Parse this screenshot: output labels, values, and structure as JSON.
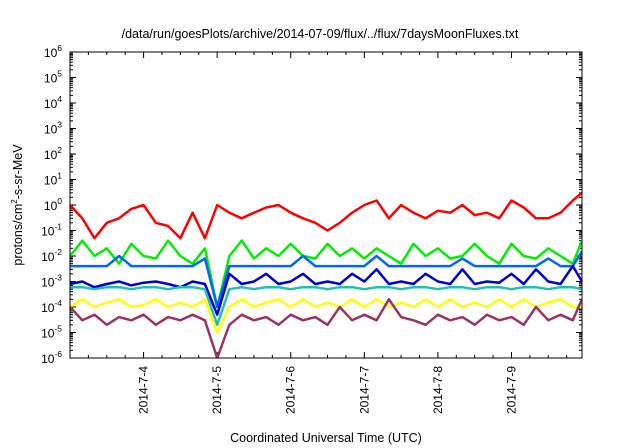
{
  "chart_data": {
    "type": "line",
    "title": "/data/run/goesPlots/archive/2014-07-09/flux/../flux/7daysMoonFluxes.txt",
    "xlabel": "Coordinated Universal Time (UTC)",
    "ylabel": "protons/cm²-s-sr-MeV",
    "ylabel_parts": [
      "protons/cm",
      "2",
      "-s-sr-MeV"
    ],
    "yscale": "log",
    "ylim": [
      1e-06,
      1000000.0
    ],
    "xlim": [
      "2014-07-03",
      "2014-07-09 23:00"
    ],
    "y_ticks": [
      {
        "exp": -6,
        "label": "10",
        "sup": "-6"
      },
      {
        "exp": -5,
        "label": "10",
        "sup": "-5"
      },
      {
        "exp": -4,
        "label": "10",
        "sup": "-4"
      },
      {
        "exp": -3,
        "label": "10",
        "sup": "-3"
      },
      {
        "exp": -2,
        "label": "10",
        "sup": "-2"
      },
      {
        "exp": -1,
        "label": "10",
        "sup": "-1"
      },
      {
        "exp": 0,
        "label": "10",
        "sup": "0"
      },
      {
        "exp": 1,
        "label": "10",
        "sup": "1"
      },
      {
        "exp": 2,
        "label": "10",
        "sup": "2"
      },
      {
        "exp": 3,
        "label": "10",
        "sup": "3"
      },
      {
        "exp": 4,
        "label": "10",
        "sup": "4"
      },
      {
        "exp": 5,
        "label": "10",
        "sup": "5"
      },
      {
        "exp": 6,
        "label": "10",
        "sup": "6"
      }
    ],
    "x_ticks": [
      {
        "x": "2014-07-04",
        "label": "2014-7-4"
      },
      {
        "x": "2014-07-05",
        "label": "2014-7-5"
      },
      {
        "x": "2014-07-06",
        "label": "2014-7-6"
      },
      {
        "x": "2014-07-07",
        "label": "2014-7-7"
      },
      {
        "x": "2014-07-08",
        "label": "2014-7-8"
      },
      {
        "x": "2014-07-09",
        "label": "2014-7-9"
      }
    ],
    "grid": false,
    "legend": "none",
    "series": [
      {
        "color": "#ff0000",
        "x": [
          "2014-07-03",
          "2014-07-03 04:00",
          "2014-07-03 08:00",
          "2014-07-03 12:00",
          "2014-07-03 16:00",
          "2014-07-03 20:00",
          "2014-07-04",
          "2014-07-04 04:00",
          "2014-07-04 08:00",
          "2014-07-04 12:00",
          "2014-07-04 16:00",
          "2014-07-04 20:00",
          "2014-07-05",
          "2014-07-05 04:00",
          "2014-07-05 08:00",
          "2014-07-05 12:00",
          "2014-07-05 16:00",
          "2014-07-05 20:00",
          "2014-07-06",
          "2014-07-06 04:00",
          "2014-07-06 08:00",
          "2014-07-06 12:00",
          "2014-07-06 16:00",
          "2014-07-06 20:00",
          "2014-07-07",
          "2014-07-07 04:00",
          "2014-07-07 08:00",
          "2014-07-07 12:00",
          "2014-07-07 16:00",
          "2014-07-07 20:00",
          "2014-07-08",
          "2014-07-08 04:00",
          "2014-07-08 08:00",
          "2014-07-08 12:00",
          "2014-07-08 16:00",
          "2014-07-08 20:00",
          "2014-07-09",
          "2014-07-09 04:00",
          "2014-07-09 08:00",
          "2014-07-09 12:00",
          "2014-07-09 16:00",
          "2014-07-09 20:00",
          "2014-07-09 23:00"
        ],
        "y": [
          1.0,
          0.3,
          0.05,
          0.2,
          0.3,
          0.7,
          1.0,
          0.2,
          0.15,
          0.05,
          0.5,
          0.05,
          1.0,
          0.5,
          0.3,
          0.5,
          0.8,
          1.0,
          0.5,
          0.3,
          0.2,
          0.1,
          0.2,
          0.5,
          1.0,
          1.5,
          0.3,
          1.0,
          0.5,
          0.3,
          0.6,
          0.5,
          1.0,
          0.4,
          0.5,
          0.3,
          1.5,
          0.8,
          0.3,
          0.3,
          0.5,
          1.5,
          3.0
        ]
      },
      {
        "color": "#00ee00",
        "x": [
          "2014-07-03",
          "2014-07-03 04:00",
          "2014-07-03 08:00",
          "2014-07-03 12:00",
          "2014-07-03 16:00",
          "2014-07-03 20:00",
          "2014-07-04",
          "2014-07-04 04:00",
          "2014-07-04 08:00",
          "2014-07-04 12:00",
          "2014-07-04 16:00",
          "2014-07-04 20:00",
          "2014-07-05",
          "2014-07-05 04:00",
          "2014-07-05 08:00",
          "2014-07-05 12:00",
          "2014-07-05 16:00",
          "2014-07-05 20:00",
          "2014-07-06",
          "2014-07-06 04:00",
          "2014-07-06 08:00",
          "2014-07-06 12:00",
          "2014-07-06 16:00",
          "2014-07-06 20:00",
          "2014-07-07",
          "2014-07-07 04:00",
          "2014-07-07 08:00",
          "2014-07-07 12:00",
          "2014-07-07 16:00",
          "2014-07-07 20:00",
          "2014-07-08",
          "2014-07-08 04:00",
          "2014-07-08 08:00",
          "2014-07-08 12:00",
          "2014-07-08 16:00",
          "2014-07-08 20:00",
          "2014-07-09",
          "2014-07-09 04:00",
          "2014-07-09 08:00",
          "2014-07-09 12:00",
          "2014-07-09 16:00",
          "2014-07-09 20:00",
          "2014-07-09 23:00"
        ],
        "y": [
          0.01,
          0.04,
          0.01,
          0.02,
          0.005,
          0.03,
          0.01,
          0.008,
          0.04,
          0.01,
          0.005,
          0.02,
          0.0001,
          0.01,
          0.04,
          0.008,
          0.02,
          0.01,
          0.03,
          0.01,
          0.008,
          0.03,
          0.01,
          0.02,
          0.008,
          0.02,
          0.01,
          0.005,
          0.03,
          0.01,
          0.02,
          0.008,
          0.01,
          0.03,
          0.01,
          0.005,
          0.03,
          0.01,
          0.008,
          0.02,
          0.01,
          0.005,
          0.04
        ]
      },
      {
        "color": "#0066ff",
        "x": [
          "2014-07-03",
          "2014-07-03 04:00",
          "2014-07-03 08:00",
          "2014-07-03 12:00",
          "2014-07-03 16:00",
          "2014-07-03 20:00",
          "2014-07-04",
          "2014-07-04 04:00",
          "2014-07-04 08:00",
          "2014-07-04 12:00",
          "2014-07-04 16:00",
          "2014-07-04 20:00",
          "2014-07-05",
          "2014-07-05 04:00",
          "2014-07-05 08:00",
          "2014-07-05 12:00",
          "2014-07-05 16:00",
          "2014-07-05 20:00",
          "2014-07-06",
          "2014-07-06 04:00",
          "2014-07-06 08:00",
          "2014-07-06 12:00",
          "2014-07-06 16:00",
          "2014-07-06 20:00",
          "2014-07-07",
          "2014-07-07 04:00",
          "2014-07-07 08:00",
          "2014-07-07 12:00",
          "2014-07-07 16:00",
          "2014-07-07 20:00",
          "2014-07-08",
          "2014-07-08 04:00",
          "2014-07-08 08:00",
          "2014-07-08 12:00",
          "2014-07-08 16:00",
          "2014-07-08 20:00",
          "2014-07-09",
          "2014-07-09 04:00",
          "2014-07-09 08:00",
          "2014-07-09 12:00",
          "2014-07-09 16:00",
          "2014-07-09 20:00",
          "2014-07-09 23:00"
        ],
        "y": [
          0.004,
          0.004,
          0.004,
          0.004,
          0.01,
          0.004,
          0.004,
          0.004,
          0.004,
          0.004,
          0.004,
          0.008,
          0.0001,
          0.004,
          0.004,
          0.004,
          0.004,
          0.004,
          0.004,
          0.01,
          0.004,
          0.004,
          0.004,
          0.004,
          0.004,
          0.01,
          0.004,
          0.004,
          0.004,
          0.004,
          0.004,
          0.004,
          0.008,
          0.004,
          0.004,
          0.004,
          0.004,
          0.004,
          0.004,
          0.008,
          0.004,
          0.004,
          0.015
        ]
      },
      {
        "color": "#0000cc",
        "x": [
          "2014-07-03",
          "2014-07-03 04:00",
          "2014-07-03 08:00",
          "2014-07-03 12:00",
          "2014-07-03 16:00",
          "2014-07-03 20:00",
          "2014-07-04",
          "2014-07-04 04:00",
          "2014-07-04 08:00",
          "2014-07-04 12:00",
          "2014-07-04 16:00",
          "2014-07-04 20:00",
          "2014-07-05",
          "2014-07-05 04:00",
          "2014-07-05 08:00",
          "2014-07-05 12:00",
          "2014-07-05 16:00",
          "2014-07-05 20:00",
          "2014-07-06",
          "2014-07-06 04:00",
          "2014-07-06 08:00",
          "2014-07-06 12:00",
          "2014-07-06 16:00",
          "2014-07-06 20:00",
          "2014-07-07",
          "2014-07-07 04:00",
          "2014-07-07 08:00",
          "2014-07-07 12:00",
          "2014-07-07 16:00",
          "2014-07-07 20:00",
          "2014-07-08",
          "2014-07-08 04:00",
          "2014-07-08 08:00",
          "2014-07-08 12:00",
          "2014-07-08 16:00",
          "2014-07-08 20:00",
          "2014-07-09",
          "2014-07-09 04:00",
          "2014-07-09 08:00",
          "2014-07-09 12:00",
          "2014-07-09 16:00",
          "2014-07-09 20:00",
          "2014-07-09 23:00"
        ],
        "y": [
          0.0008,
          0.001,
          0.0006,
          0.0008,
          0.001,
          0.0007,
          0.0009,
          0.001,
          0.0008,
          0.0006,
          0.001,
          0.0008,
          5e-05,
          0.002,
          0.0008,
          0.001,
          0.002,
          0.0008,
          0.001,
          0.002,
          0.0008,
          0.001,
          0.0008,
          0.002,
          0.001,
          0.003,
          0.0008,
          0.001,
          0.0008,
          0.002,
          0.001,
          0.0008,
          0.003,
          0.0008,
          0.001,
          0.0009,
          0.002,
          0.0008,
          0.003,
          0.001,
          0.0008,
          0.004,
          0.001
        ]
      },
      {
        "color": "#20c0b0",
        "x": [
          "2014-07-03",
          "2014-07-03 04:00",
          "2014-07-03 08:00",
          "2014-07-03 12:00",
          "2014-07-03 16:00",
          "2014-07-03 20:00",
          "2014-07-04",
          "2014-07-04 04:00",
          "2014-07-04 08:00",
          "2014-07-04 12:00",
          "2014-07-04 16:00",
          "2014-07-04 20:00",
          "2014-07-05",
          "2014-07-05 04:00",
          "2014-07-05 08:00",
          "2014-07-05 12:00",
          "2014-07-05 16:00",
          "2014-07-05 20:00",
          "2014-07-06",
          "2014-07-06 04:00",
          "2014-07-06 08:00",
          "2014-07-06 12:00",
          "2014-07-06 16:00",
          "2014-07-06 20:00",
          "2014-07-07",
          "2014-07-07 04:00",
          "2014-07-07 08:00",
          "2014-07-07 12:00",
          "2014-07-07 16:00",
          "2014-07-07 20:00",
          "2014-07-08",
          "2014-07-08 04:00",
          "2014-07-08 08:00",
          "2014-07-08 12:00",
          "2014-07-08 16:00",
          "2014-07-08 20:00",
          "2014-07-09",
          "2014-07-09 04:00",
          "2014-07-09 08:00",
          "2014-07-09 12:00",
          "2014-07-09 16:00",
          "2014-07-09 20:00",
          "2014-07-09 23:00"
        ],
        "y": [
          0.0006,
          0.0006,
          0.0005,
          0.0006,
          0.0006,
          0.0005,
          0.0006,
          0.0006,
          0.0005,
          0.0006,
          0.0006,
          0.0005,
          2e-05,
          0.0005,
          0.0006,
          0.0005,
          0.0006,
          0.0006,
          0.0005,
          0.0006,
          0.0006,
          0.0005,
          0.0006,
          0.0006,
          0.0005,
          0.0006,
          0.0006,
          0.0005,
          0.0006,
          0.0006,
          0.0005,
          0.0006,
          0.0006,
          0.0005,
          0.0006,
          0.0006,
          0.0005,
          0.0006,
          0.0006,
          0.0005,
          0.0006,
          0.0006,
          0.0005
        ]
      },
      {
        "color": "#ffff00",
        "x": [
          "2014-07-03",
          "2014-07-03 04:00",
          "2014-07-03 08:00",
          "2014-07-03 12:00",
          "2014-07-03 16:00",
          "2014-07-03 20:00",
          "2014-07-04",
          "2014-07-04 04:00",
          "2014-07-04 08:00",
          "2014-07-04 12:00",
          "2014-07-04 16:00",
          "2014-07-04 20:00",
          "2014-07-05",
          "2014-07-05 04:00",
          "2014-07-05 08:00",
          "2014-07-05 12:00",
          "2014-07-05 16:00",
          "2014-07-05 20:00",
          "2014-07-06",
          "2014-07-06 04:00",
          "2014-07-06 08:00",
          "2014-07-06 12:00",
          "2014-07-06 16:00",
          "2014-07-06 20:00",
          "2014-07-07",
          "2014-07-07 04:00",
          "2014-07-07 08:00",
          "2014-07-07 12:00",
          "2014-07-07 16:00",
          "2014-07-07 20:00",
          "2014-07-08",
          "2014-07-08 04:00",
          "2014-07-08 08:00",
          "2014-07-08 12:00",
          "2014-07-08 16:00",
          "2014-07-08 20:00",
          "2014-07-09",
          "2014-07-09 04:00",
          "2014-07-09 08:00",
          "2014-07-09 12:00",
          "2014-07-09 16:00",
          "2014-07-09 20:00",
          "2014-07-09 23:00"
        ],
        "y": [
          0.0001,
          0.0002,
          0.0001,
          0.00015,
          0.0002,
          0.0001,
          0.00012,
          0.0002,
          0.0001,
          0.00015,
          0.0001,
          0.0002,
          1e-05,
          0.0001,
          0.0002,
          0.0001,
          0.00015,
          0.0002,
          0.0001,
          0.0002,
          0.0001,
          0.00015,
          0.0001,
          0.0002,
          0.0001,
          0.0002,
          0.0001,
          0.00015,
          0.0001,
          0.0002,
          0.0001,
          0.0002,
          0.0001,
          0.00015,
          0.0001,
          0.0002,
          0.0001,
          0.0002,
          0.0001,
          0.00015,
          0.0002,
          0.0001,
          0.0001
        ]
      },
      {
        "color": "#993366",
        "x": [
          "2014-07-03",
          "2014-07-03 04:00",
          "2014-07-03 08:00",
          "2014-07-03 12:00",
          "2014-07-03 16:00",
          "2014-07-03 20:00",
          "2014-07-04",
          "2014-07-04 04:00",
          "2014-07-04 08:00",
          "2014-07-04 12:00",
          "2014-07-04 16:00",
          "2014-07-04 20:00",
          "2014-07-05",
          "2014-07-05 04:00",
          "2014-07-05 08:00",
          "2014-07-05 12:00",
          "2014-07-05 16:00",
          "2014-07-05 20:00",
          "2014-07-06",
          "2014-07-06 04:00",
          "2014-07-06 08:00",
          "2014-07-06 12:00",
          "2014-07-06 16:00",
          "2014-07-06 20:00",
          "2014-07-07",
          "2014-07-07 04:00",
          "2014-07-07 08:00",
          "2014-07-07 12:00",
          "2014-07-07 16:00",
          "2014-07-07 20:00",
          "2014-07-08",
          "2014-07-08 04:00",
          "2014-07-08 08:00",
          "2014-07-08 12:00",
          "2014-07-08 16:00",
          "2014-07-08 20:00",
          "2014-07-09",
          "2014-07-09 04:00",
          "2014-07-09 08:00",
          "2014-07-09 12:00",
          "2014-07-09 16:00",
          "2014-07-09 20:00",
          "2014-07-09 23:00"
        ],
        "y": [
          0.0001,
          3e-05,
          5e-05,
          2e-05,
          4e-05,
          3e-05,
          5e-05,
          2e-05,
          4e-05,
          3e-05,
          5e-05,
          3e-05,
          1e-06,
          2e-05,
          5e-05,
          3e-05,
          4e-05,
          2e-05,
          5e-05,
          3e-05,
          4e-05,
          2e-05,
          0.0001,
          3e-05,
          5e-05,
          3e-05,
          0.0002,
          4e-05,
          3e-05,
          2e-05,
          5e-05,
          3e-05,
          4e-05,
          2e-05,
          5e-05,
          3e-05,
          4e-05,
          2e-05,
          0.0001,
          3e-05,
          5e-05,
          3e-05,
          0.0002
        ]
      }
    ]
  }
}
